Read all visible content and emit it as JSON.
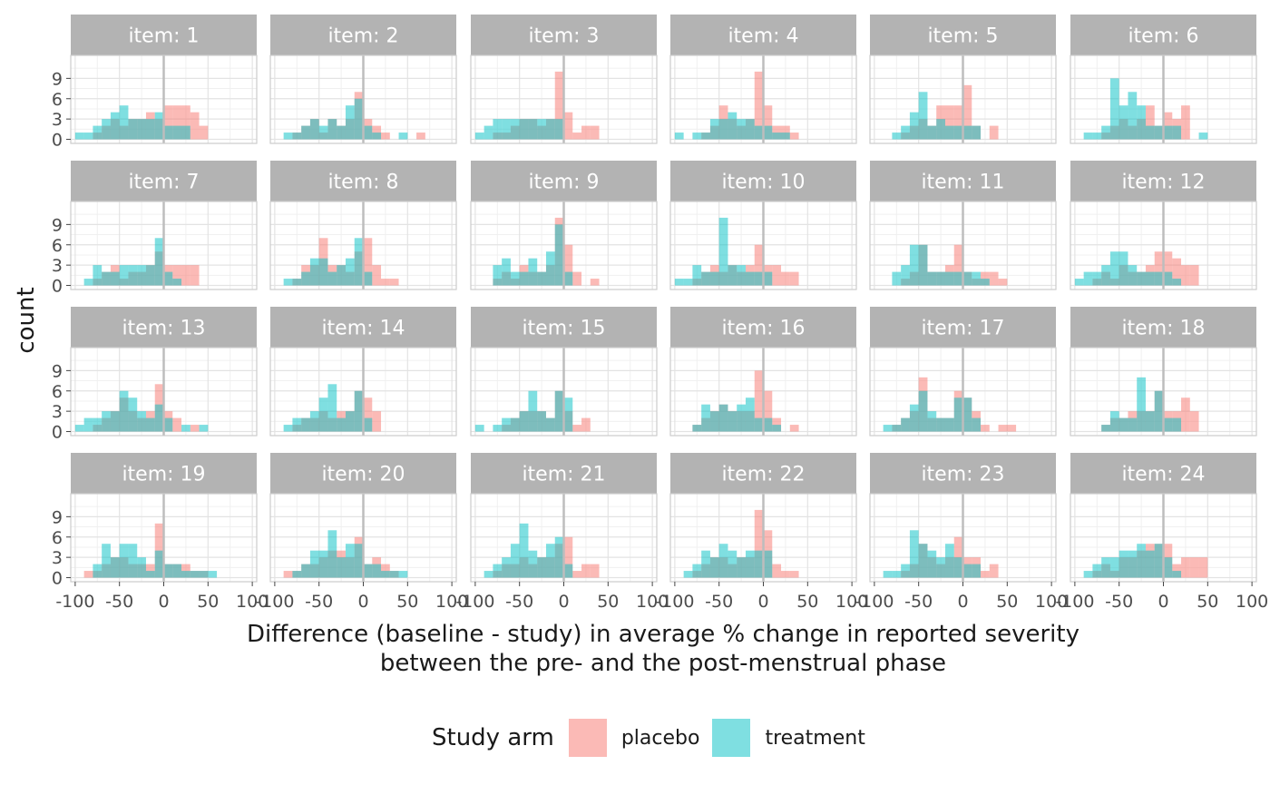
{
  "chart_data": {
    "type": "histogram",
    "facet_label_prefix": "item: ",
    "panels": [
      "1",
      "2",
      "3",
      "4",
      "5",
      "6",
      "7",
      "8",
      "9",
      "10",
      "11",
      "12",
      "13",
      "14",
      "15",
      "16",
      "17",
      "18",
      "19",
      "20",
      "21",
      "22",
      "23",
      "24"
    ],
    "xlabel_lines": [
      "Difference (baseline - study) in average % change in reported severity",
      "between the pre- and the post-menstrual phase"
    ],
    "ylabel": "count",
    "x_ticks": [
      -100,
      -50,
      0,
      50,
      100
    ],
    "x_tick_labels": [
      "-100",
      "-50",
      "0",
      "50",
      "100"
    ],
    "y_ticks": [
      0,
      3,
      6,
      9
    ],
    "xlim": [
      -105,
      105
    ],
    "ylim": [
      -0.6,
      12.4
    ],
    "bins": {
      "start": -95,
      "width": 10,
      "count": 18
    },
    "reference_line_x": 0,
    "legend": {
      "title": "Study arm",
      "placement": "bottom"
    },
    "series": [
      {
        "name": "placebo",
        "color": "#F8766D",
        "values": [
          [
            0,
            0,
            1,
            2,
            3,
            2,
            3,
            3,
            4,
            3,
            5,
            5,
            5,
            4,
            2,
            0,
            0,
            0
          ],
          [
            0,
            0,
            1,
            2,
            3,
            1,
            3,
            2,
            3,
            7,
            3,
            2,
            1,
            0,
            0,
            0,
            1,
            0
          ],
          [
            0,
            0,
            1,
            1,
            2,
            3,
            3,
            2,
            3,
            10,
            4,
            1,
            2,
            2,
            0,
            0,
            0,
            0
          ],
          [
            0,
            0,
            0,
            1,
            2,
            5,
            3,
            2,
            3,
            10,
            5,
            2,
            2,
            1,
            0,
            0,
            0,
            0
          ],
          [
            0,
            0,
            0,
            1,
            2,
            3,
            2,
            5,
            5,
            5,
            8,
            2,
            0,
            2,
            0,
            0,
            0,
            0
          ],
          [
            0,
            0,
            0,
            1,
            2,
            3,
            2,
            3,
            5,
            2,
            4,
            3,
            5,
            0,
            0,
            0,
            0,
            0
          ],
          [
            0,
            0,
            1,
            2,
            3,
            1,
            2,
            2,
            3,
            5,
            3,
            3,
            3,
            3,
            0,
            0,
            0,
            0
          ],
          [
            0,
            0,
            1,
            3,
            3,
            7,
            3,
            3,
            2,
            5,
            7,
            3,
            1,
            1,
            0,
            0,
            0,
            0
          ],
          [
            0,
            0,
            1,
            2,
            1,
            3,
            2,
            2,
            3,
            10,
            6,
            2,
            0,
            1,
            0,
            0,
            0,
            0
          ],
          [
            0,
            0,
            1,
            2,
            3,
            2,
            3,
            2,
            3,
            6,
            3,
            3,
            2,
            2,
            0,
            0,
            0,
            0
          ],
          [
            0,
            0,
            0,
            1,
            2,
            6,
            2,
            2,
            3,
            6,
            2,
            1,
            2,
            2,
            1,
            0,
            0,
            0
          ],
          [
            0,
            0,
            1,
            2,
            1,
            3,
            2,
            2,
            3,
            5,
            5,
            4,
            3,
            3,
            0,
            0,
            0,
            0
          ],
          [
            0,
            0,
            1,
            2,
            3,
            5,
            3,
            2,
            3,
            7,
            3,
            2,
            0,
            1,
            0,
            0,
            0,
            0
          ],
          [
            0,
            0,
            1,
            2,
            2,
            3,
            2,
            3,
            3,
            6,
            5,
            3,
            0,
            0,
            0,
            0,
            0,
            0
          ],
          [
            0,
            0,
            0,
            1,
            2,
            3,
            3,
            3,
            2,
            6,
            3,
            1,
            2,
            0,
            0,
            0,
            0,
            0
          ],
          [
            0,
            0,
            1,
            2,
            3,
            4,
            3,
            3,
            3,
            9,
            6,
            2,
            0,
            1,
            0,
            0,
            0,
            0
          ],
          [
            0,
            0,
            1,
            2,
            3,
            8,
            2,
            2,
            2,
            6,
            5,
            3,
            1,
            0,
            1,
            1,
            0,
            0
          ],
          [
            0,
            0,
            0,
            1,
            2,
            2,
            3,
            3,
            3,
            6,
            3,
            3,
            5,
            3,
            0,
            0,
            0,
            0
          ],
          [
            0,
            1,
            1,
            2,
            3,
            3,
            2,
            2,
            2,
            8,
            2,
            2,
            2,
            1,
            1,
            0,
            0,
            0
          ],
          [
            0,
            1,
            1,
            2,
            2,
            3,
            4,
            4,
            3,
            6,
            2,
            3,
            2,
            1,
            0,
            0,
            0,
            0
          ],
          [
            0,
            0,
            1,
            2,
            2,
            3,
            2,
            3,
            3,
            5,
            6,
            1,
            2,
            2,
            0,
            0,
            0,
            0
          ],
          [
            0,
            0,
            1,
            2,
            3,
            3,
            2,
            3,
            3,
            10,
            7,
            2,
            1,
            1,
            0,
            0,
            0,
            0
          ],
          [
            0,
            0,
            0,
            1,
            2,
            5,
            3,
            2,
            3,
            6,
            3,
            3,
            1,
            2,
            0,
            0,
            0,
            0
          ],
          [
            0,
            0,
            1,
            2,
            1,
            3,
            3,
            4,
            5,
            5,
            5,
            2,
            3,
            3,
            3,
            0,
            0,
            0
          ]
        ]
      },
      {
        "name": "treatment",
        "color": "#00BFC4",
        "values": [
          [
            1,
            1,
            2,
            3,
            4,
            5,
            3,
            3,
            3,
            4,
            2,
            2,
            2,
            0,
            0,
            0,
            0,
            0
          ],
          [
            0,
            1,
            1,
            2,
            3,
            2,
            3,
            2,
            5,
            6,
            2,
            1,
            0,
            0,
            1,
            0,
            0,
            0
          ],
          [
            1,
            2,
            3,
            3,
            3,
            3,
            3,
            3,
            3,
            3,
            0,
            0,
            0,
            0,
            0,
            0,
            0,
            0
          ],
          [
            1,
            0,
            1,
            1,
            3,
            3,
            4,
            3,
            3,
            2,
            2,
            1,
            1,
            0,
            0,
            0,
            0,
            0
          ],
          [
            0,
            0,
            1,
            2,
            4,
            7,
            2,
            3,
            2,
            2,
            2,
            2,
            0,
            0,
            0,
            0,
            0,
            0
          ],
          [
            0,
            1,
            1,
            2,
            9,
            5,
            7,
            5,
            2,
            2,
            2,
            2,
            0,
            0,
            1,
            0,
            0,
            0
          ],
          [
            0,
            1,
            3,
            2,
            2,
            3,
            3,
            3,
            3,
            7,
            2,
            1,
            0,
            0,
            0,
            0,
            0,
            0
          ],
          [
            0,
            1,
            1,
            2,
            4,
            4,
            2,
            3,
            4,
            7,
            2,
            0,
            0,
            0,
            0,
            0,
            0,
            0
          ],
          [
            0,
            0,
            3,
            4,
            2,
            2,
            4,
            2,
            5,
            9,
            2,
            0,
            0,
            0,
            0,
            0,
            0,
            0
          ],
          [
            1,
            1,
            3,
            2,
            2,
            10,
            3,
            3,
            2,
            2,
            2,
            0,
            0,
            0,
            0,
            0,
            0,
            0
          ],
          [
            0,
            0,
            2,
            3,
            6,
            6,
            2,
            2,
            2,
            2,
            2,
            2,
            1,
            0,
            0,
            0,
            0,
            0
          ],
          [
            1,
            2,
            2,
            3,
            5,
            5,
            3,
            2,
            2,
            2,
            2,
            1,
            0,
            0,
            0,
            0,
            0,
            0
          ],
          [
            1,
            2,
            2,
            3,
            3,
            6,
            5,
            3,
            2,
            4,
            2,
            0,
            1,
            0,
            1,
            0,
            0,
            0
          ],
          [
            0,
            1,
            2,
            2,
            3,
            5,
            7,
            2,
            3,
            6,
            2,
            0,
            0,
            0,
            0,
            0,
            0,
            0
          ],
          [
            1,
            0,
            1,
            2,
            2,
            3,
            6,
            3,
            2,
            6,
            5,
            0,
            0,
            0,
            0,
            0,
            0,
            0
          ],
          [
            0,
            0,
            1,
            4,
            3,
            4,
            3,
            4,
            5,
            2,
            2,
            1,
            0,
            0,
            0,
            0,
            0,
            0
          ],
          [
            0,
            1,
            1,
            2,
            4,
            6,
            3,
            2,
            2,
            5,
            5,
            2,
            0,
            0,
            0,
            0,
            0,
            0
          ],
          [
            0,
            0,
            0,
            1,
            3,
            2,
            2,
            8,
            3,
            6,
            2,
            2,
            0,
            0,
            0,
            0,
            0,
            0
          ],
          [
            0,
            0,
            2,
            5,
            3,
            5,
            5,
            3,
            1,
            4,
            2,
            2,
            1,
            1,
            1,
            1,
            0,
            0
          ],
          [
            0,
            0,
            1,
            2,
            4,
            4,
            7,
            3,
            5,
            5,
            2,
            2,
            1,
            1,
            1,
            0,
            0,
            0
          ],
          [
            0,
            1,
            2,
            3,
            5,
            8,
            4,
            3,
            5,
            6,
            2,
            0,
            0,
            0,
            0,
            0,
            0,
            0
          ],
          [
            0,
            1,
            2,
            4,
            3,
            5,
            4,
            3,
            4,
            4,
            4,
            0,
            0,
            0,
            0,
            0,
            0,
            0
          ],
          [
            0,
            1,
            1,
            2,
            7,
            5,
            4,
            3,
            5,
            3,
            2,
            2,
            0,
            0,
            0,
            0,
            0,
            0
          ],
          [
            0,
            1,
            2,
            3,
            3,
            4,
            4,
            5,
            4,
            5,
            3,
            1,
            0,
            0,
            0,
            0,
            0,
            0
          ]
        ]
      }
    ]
  }
}
